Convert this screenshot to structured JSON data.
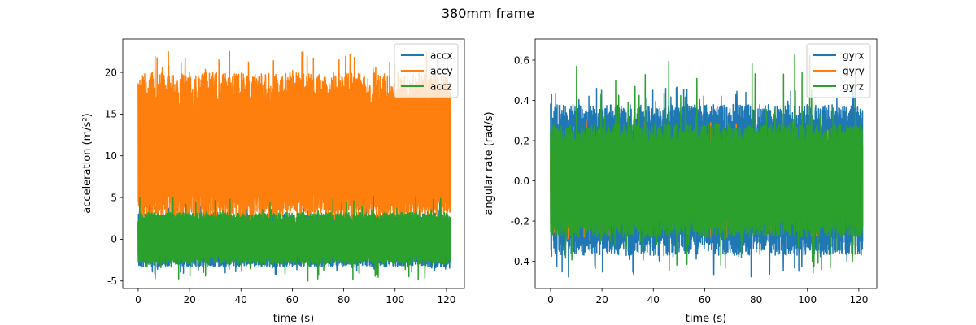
{
  "figure": {
    "title": "380mm frame"
  },
  "chart_data": [
    {
      "type": "line",
      "xlabel": "time (s)",
      "ylabel": "acceleration (m/s²)",
      "xlim": [
        -6.0,
        127.0
      ],
      "ylim": [
        -5.9,
        24.0
      ],
      "xticks": [
        0,
        20,
        40,
        60,
        80,
        100,
        120
      ],
      "yticks": [
        -5,
        0,
        5,
        10,
        15,
        20
      ],
      "legend_position": "upper right",
      "series": [
        {
          "name": "accx",
          "color": "#1f77b4",
          "center": 0.0,
          "band": [
            -3.3,
            3.0
          ],
          "extremes": [
            -4.3,
            4.2
          ]
        },
        {
          "name": "accy",
          "color": "#ff7f0e",
          "center": 10.5,
          "band": [
            2.5,
            20.0
          ],
          "extremes": [
            1.6,
            22.5
          ]
        },
        {
          "name": "accz",
          "color": "#2ca02c",
          "center": 0.0,
          "band": [
            -3.0,
            3.2
          ],
          "extremes": [
            -5.0,
            5.2
          ]
        }
      ],
      "x_range": [
        0,
        121.5
      ]
    },
    {
      "type": "line",
      "xlabel": "time (s)",
      "ylabel": "angular rate (rad/s)",
      "xlim": [
        -6.0,
        127.0
      ],
      "ylim": [
        -0.535,
        0.705
      ],
      "xticks": [
        0,
        20,
        40,
        60,
        80,
        100,
        120
      ],
      "yticks": [
        -0.4,
        -0.2,
        0.0,
        0.2,
        0.4,
        0.6
      ],
      "legend_position": "upper right",
      "series": [
        {
          "name": "gyrx",
          "color": "#1f77b4",
          "center": 0.0,
          "band": [
            -0.37,
            0.38
          ],
          "extremes": [
            -0.48,
            0.47
          ]
        },
        {
          "name": "gyry",
          "color": "#ff7f0e",
          "center": 0.0,
          "band": [
            -0.2,
            0.2
          ],
          "extremes": [
            -0.3,
            0.3
          ]
        },
        {
          "name": "gyrz",
          "color": "#2ca02c",
          "center": 0.0,
          "band": [
            -0.28,
            0.28
          ],
          "extremes": [
            -0.45,
            0.65
          ]
        }
      ],
      "x_range": [
        0,
        121.5
      ]
    }
  ]
}
